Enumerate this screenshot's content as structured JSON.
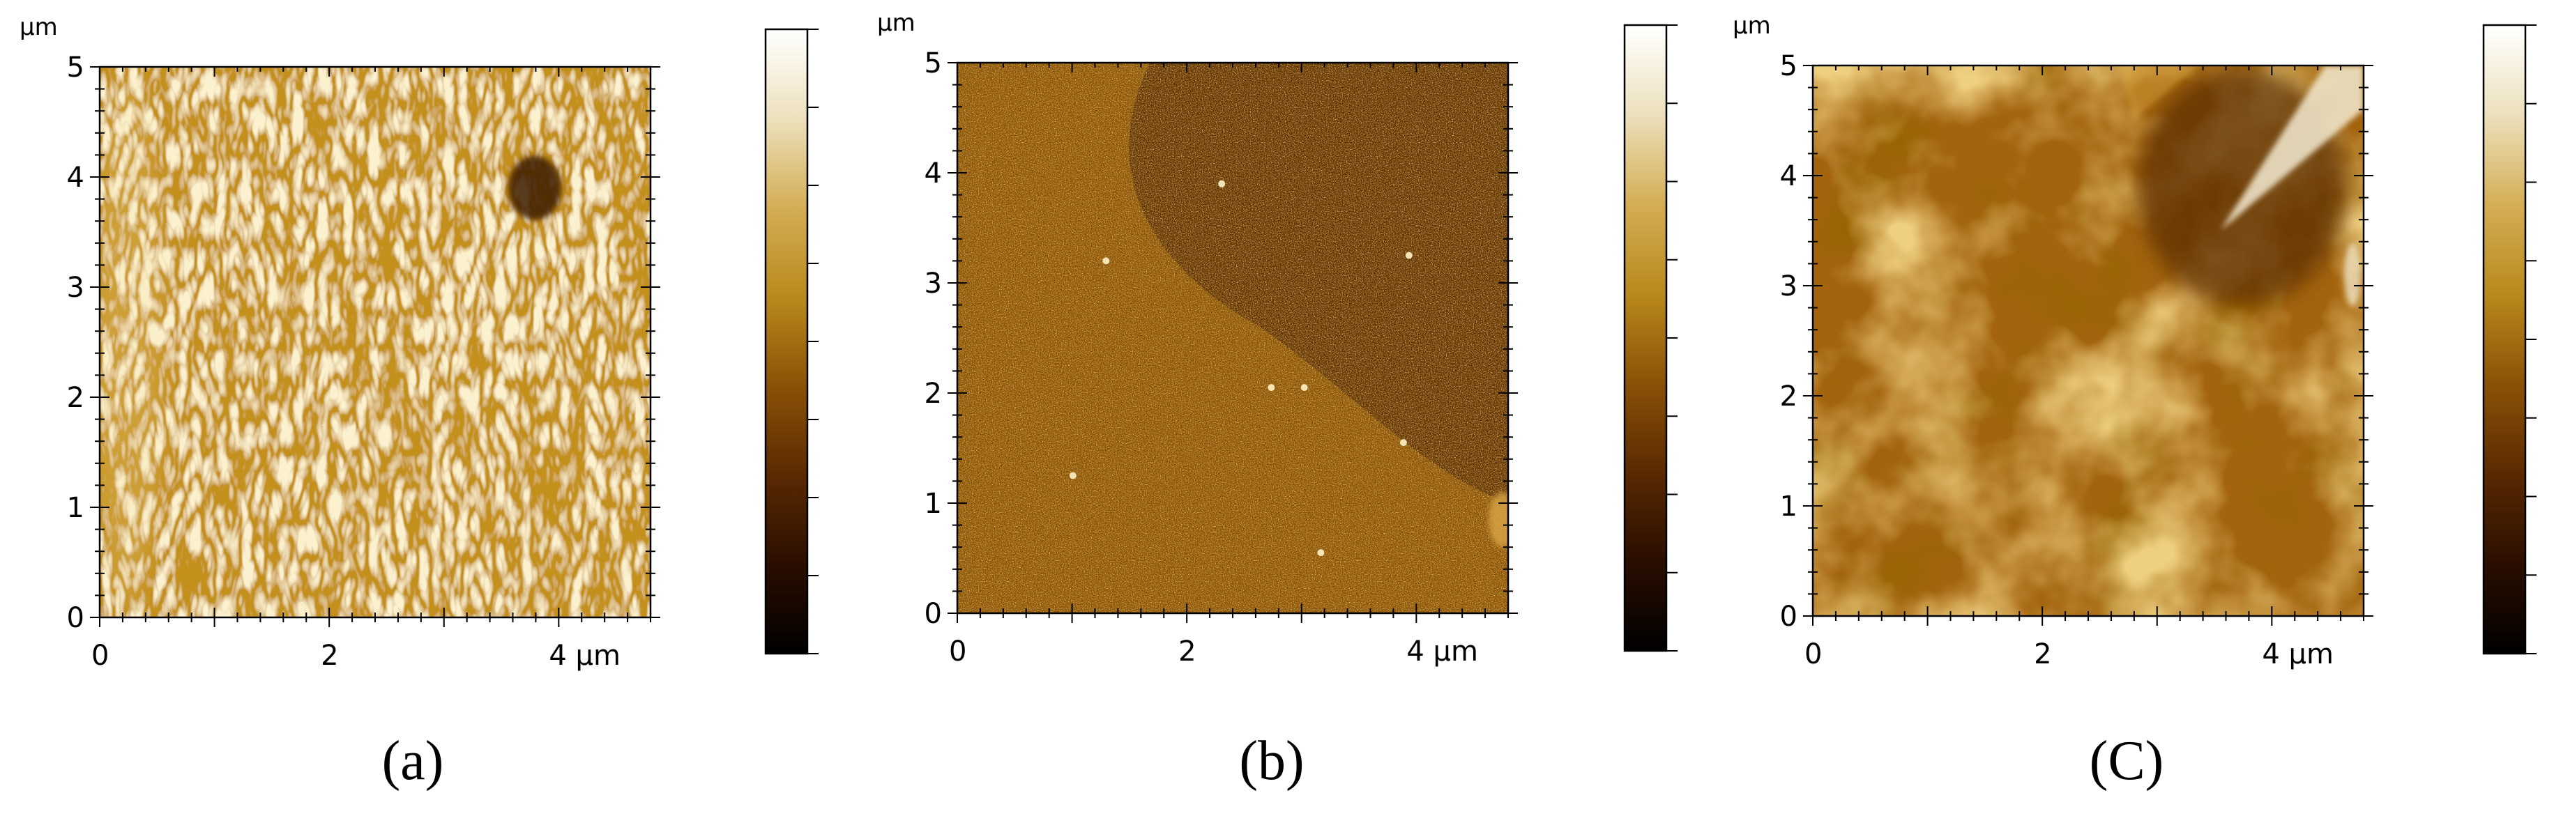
{
  "figure": {
    "panels": [
      {
        "id": "a",
        "caption": "(a)",
        "unit_top": "µm",
        "y_ticks": [
          "0",
          "1",
          "2",
          "3",
          "4",
          "5"
        ],
        "x_ticks": [
          "0",
          "2",
          "4 µm"
        ],
        "texture": "dense worm-like ridged labyrinth pattern, golden ochre tones with a dark pit near x≈3.8 µm, y≈4 µm",
        "colors": {
          "base": "#c4901e",
          "highlight": "#f6e2a4",
          "shadow": "#7a4a06",
          "pit": "#3d1c02"
        }
      },
      {
        "id": "b",
        "caption": "(b)",
        "unit_top": "µm",
        "y_ticks": [
          "0",
          "1",
          "2",
          "3",
          "4",
          "5"
        ],
        "x_ticks": [
          "0",
          "2",
          "4 µm"
        ],
        "texture": "fine grainy surface, mid brown lower-left region and darker brown upper-right region separated by a diagonal boundary, scattered bright specks",
        "colors": {
          "base": "#8c5206",
          "highlight": "#e9b24a",
          "shadow": "#4a2400",
          "dark_region": "#5a2c02"
        }
      },
      {
        "id": "c",
        "caption": "(C)",
        "unit_top": "µm",
        "y_ticks": [
          "0",
          "1",
          "2",
          "3",
          "4",
          "5"
        ],
        "x_ticks": [
          "0",
          "2",
          "4 µm"
        ],
        "texture": "smooth cloudy mottled surface, golden and brown blotches, dark streak region in upper right with a bright lighter band at the top-right corner",
        "colors": {
          "base": "#a4640e",
          "highlight": "#d9a43e",
          "shadow": "#5c2e02",
          "bright": "#f3ead0"
        }
      }
    ],
    "colorbar": {
      "stops": [
        "#000000",
        "#2a0e00",
        "#5a2a02",
        "#8a5207",
        "#b88a1c",
        "#d4ae55",
        "#ece0bc",
        "#ffffff"
      ]
    }
  }
}
